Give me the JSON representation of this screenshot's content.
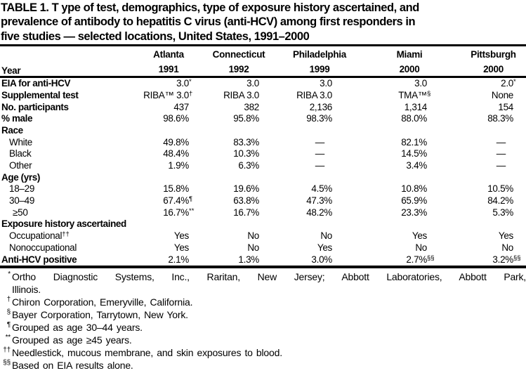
{
  "page": {
    "background": "#ffffff",
    "text_color": "#000000",
    "rule_color": "#000000"
  },
  "title": {
    "lines": [
      "TABLE 1. T ype of test, demographics, type of exposure history ascertained, and",
      "prevalence of antibody to hepatitis C virus (anti-HCV) among first responders in",
      "five studies — selected locations, United States, 1991–2000"
    ]
  },
  "table": {
    "header": {
      "year_label": "Year",
      "columns": [
        {
          "city": "Atlanta",
          "year": "1991"
        },
        {
          "city": "Connecticut",
          "year": "1992"
        },
        {
          "city": "Philadelphia",
          "year": "1999"
        },
        {
          "city": "Miami",
          "year": "2000"
        },
        {
          "city": "Pittsburgh",
          "year": "2000"
        }
      ]
    },
    "rows": [
      {
        "label": "EIA for anti-HCV",
        "type": "bold",
        "cells": [
          {
            "v": "3.0",
            "sup": "*"
          },
          {
            "v": "3.0"
          },
          {
            "v": "3.0"
          },
          {
            "v": "3.0"
          },
          {
            "v": "2.0",
            "sup": "*"
          }
        ]
      },
      {
        "label": "Supplemental test",
        "type": "bold",
        "cells": [
          {
            "v": "RIBA™ 3.0",
            "sup": "†"
          },
          {
            "v": "RIBA 3.0"
          },
          {
            "v": "RIBA 3.0"
          },
          {
            "v": "TMA™",
            "sup": "§"
          },
          {
            "v": "None"
          }
        ]
      },
      {
        "label": "No. participants",
        "type": "bold",
        "cells": [
          {
            "v": "437"
          },
          {
            "v": "382"
          },
          {
            "v": "2,136"
          },
          {
            "v": "1,314"
          },
          {
            "v": "154"
          }
        ]
      },
      {
        "label": "% male",
        "type": "bold",
        "cells": [
          {
            "v": "98.6%"
          },
          {
            "v": "95.8%"
          },
          {
            "v": "98.3%"
          },
          {
            "v": "88.0%"
          },
          {
            "v": "88.3%"
          }
        ]
      },
      {
        "label": "Race",
        "type": "section",
        "cells": []
      },
      {
        "label": "White",
        "type": "indent",
        "cells": [
          {
            "v": "49.8%"
          },
          {
            "v": "83.3%"
          },
          {
            "v": "—"
          },
          {
            "v": "82.1%"
          },
          {
            "v": "—"
          }
        ]
      },
      {
        "label": "Black",
        "type": "indent",
        "cells": [
          {
            "v": "48.4%"
          },
          {
            "v": "10.3%"
          },
          {
            "v": "—"
          },
          {
            "v": "14.5%"
          },
          {
            "v": "—"
          }
        ]
      },
      {
        "label": "Other",
        "type": "indent",
        "cells": [
          {
            "v": "1.9%"
          },
          {
            "v": "6.3%"
          },
          {
            "v": "—"
          },
          {
            "v": "3.4%"
          },
          {
            "v": "—"
          }
        ]
      },
      {
        "label": "Age (yrs)",
        "type": "section",
        "cells": []
      },
      {
        "label": "18–29",
        "type": "indent",
        "cells": [
          {
            "v": "15.8%"
          },
          {
            "v": "19.6%"
          },
          {
            "v": "4.5%"
          },
          {
            "v": "10.8%"
          },
          {
            "v": "10.5%"
          }
        ]
      },
      {
        "label": "30–49",
        "type": "indent",
        "cells": [
          {
            "v": "67.4%",
            "sup": "¶"
          },
          {
            "v": "63.8%"
          },
          {
            "v": "47.3%"
          },
          {
            "v": "65.9%"
          },
          {
            "v": "84.2%"
          }
        ]
      },
      {
        "label": "≥50",
        "type": "indent-more",
        "cells": [
          {
            "v": "16.7%",
            "sup": "**"
          },
          {
            "v": "16.7%"
          },
          {
            "v": "48.2%"
          },
          {
            "v": "23.3%"
          },
          {
            "v": "5.3%"
          }
        ]
      },
      {
        "label": "Exposure history ascertained",
        "type": "section",
        "cells": []
      },
      {
        "label": "Occupational",
        "label_sup": "††",
        "type": "indent",
        "cells": [
          {
            "v": "Yes"
          },
          {
            "v": "No"
          },
          {
            "v": "No"
          },
          {
            "v": "Yes"
          },
          {
            "v": "Yes"
          }
        ]
      },
      {
        "label": "Nonoccupational",
        "type": "indent",
        "cells": [
          {
            "v": "Yes"
          },
          {
            "v": "No"
          },
          {
            "v": "Yes"
          },
          {
            "v": "No"
          },
          {
            "v": "No"
          }
        ]
      },
      {
        "label": "Anti-HCV positive",
        "type": "bold",
        "cells": [
          {
            "v": "2.1%"
          },
          {
            "v": "1.3%"
          },
          {
            "v": "3.0%"
          },
          {
            "v": "2.7%",
            "sup": "§§"
          },
          {
            "v": "3.2%",
            "sup": "§§"
          }
        ]
      }
    ]
  },
  "footnotes": [
    {
      "marker": "*",
      "text": "Ortho Diagnostic Systems, Inc., Raritan, New Jersey; Abbott Laboratories, Abbott Park,",
      "text2": "Illinois.",
      "justify": true
    },
    {
      "marker": "†",
      "text": "Chiron Corporation, Emeryville, California."
    },
    {
      "marker": "§",
      "text": "Bayer Corporation, Tarrytown, New York."
    },
    {
      "marker": "¶",
      "text": "Grouped as age 30–44 years."
    },
    {
      "marker": "**",
      "text": "Grouped as age ≥45 years."
    },
    {
      "marker": "††",
      "text": "Needlestick, mucous membrane, and skin exposures to blood."
    },
    {
      "marker": "§§",
      "text": "Based on EIA results alone."
    }
  ]
}
